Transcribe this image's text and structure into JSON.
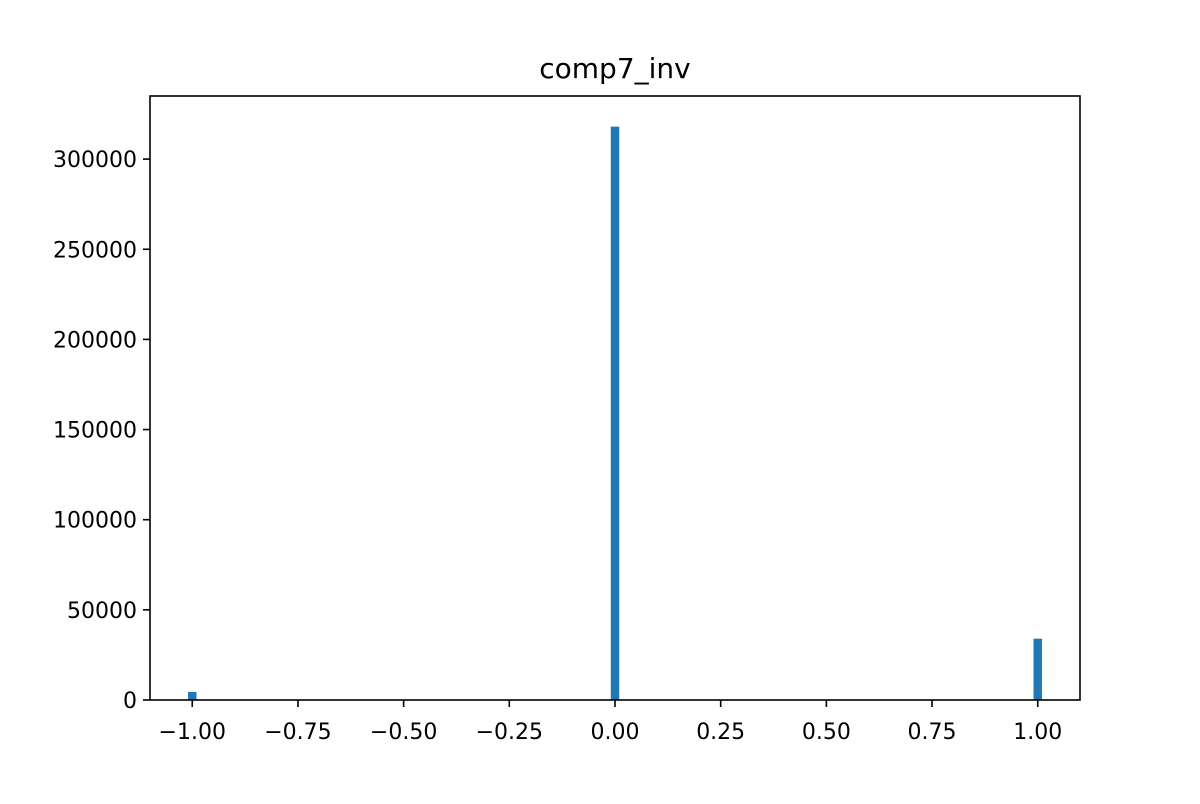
{
  "chart_data": {
    "type": "bar",
    "title": "comp7_inv",
    "xlabel": "",
    "ylabel": "",
    "xlim": [
      -1.1,
      1.1
    ],
    "ylim": [
      0,
      335000
    ],
    "bin_width": 0.02,
    "x_ticks": [
      -1.0,
      -0.75,
      -0.5,
      -0.25,
      0.0,
      0.25,
      0.5,
      0.75,
      1.0
    ],
    "x_tick_labels": [
      "−1.00",
      "−0.75",
      "−0.50",
      "−0.25",
      "0.00",
      "0.25",
      "0.50",
      "0.75",
      "1.00"
    ],
    "y_ticks": [
      0,
      50000,
      100000,
      150000,
      200000,
      250000,
      300000
    ],
    "y_tick_labels": [
      "0",
      "50000",
      "100000",
      "150000",
      "200000",
      "250000",
      "300000"
    ],
    "bars": [
      {
        "x": -1.0,
        "value": 4500
      },
      {
        "x": 0.0,
        "value": 318000
      },
      {
        "x": 1.0,
        "value": 34000
      }
    ],
    "bar_color": "#1f77b4",
    "grid": false,
    "legend": "none"
  }
}
